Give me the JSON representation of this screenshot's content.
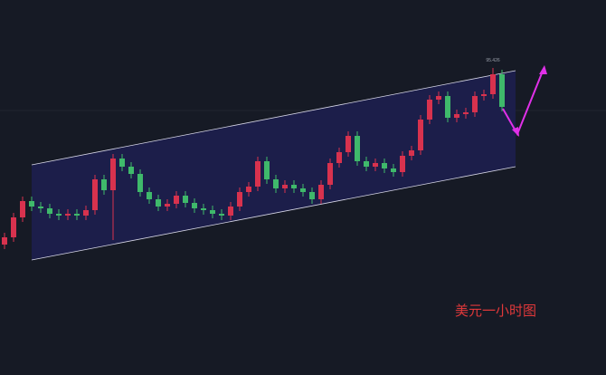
{
  "chart_data": {
    "type": "candlestick",
    "caption": "美元一小时图",
    "ylim": [
      92.714,
      96.026
    ],
    "up_color": "#d8324e",
    "down_color": "#3fb96b",
    "open": [
      93.866,
      93.93,
      94.106,
      94.25,
      94.202,
      94.186,
      94.138,
      94.122,
      94.138,
      94.122,
      94.17,
      94.442,
      94.346,
      94.626,
      94.554,
      94.49,
      94.33,
      94.266,
      94.202,
      94.226,
      94.298,
      94.234,
      94.186,
      94.17,
      94.138,
      94.122,
      94.202,
      94.33,
      94.378,
      94.602,
      94.442,
      94.362,
      94.394,
      94.362,
      94.33,
      94.266,
      94.394,
      94.586,
      94.682,
      94.826,
      94.602,
      94.554,
      94.586,
      94.538,
      94.506,
      94.65,
      94.698,
      94.97,
      95.146,
      95.178,
      94.986,
      95.018,
      95.034,
      95.178,
      95.194,
      95.37
    ],
    "high": [
      93.97,
      94.146,
      94.29,
      94.29,
      94.242,
      94.226,
      94.178,
      94.178,
      94.178,
      94.21,
      94.482,
      94.482,
      94.666,
      94.666,
      94.594,
      94.53,
      94.37,
      94.306,
      94.266,
      94.338,
      94.338,
      94.274,
      94.226,
      94.21,
      94.178,
      94.242,
      94.37,
      94.418,
      94.642,
      94.642,
      94.482,
      94.434,
      94.434,
      94.402,
      94.37,
      94.434,
      94.626,
      94.722,
      94.866,
      94.866,
      94.642,
      94.626,
      94.626,
      94.578,
      94.69,
      94.738,
      95.01,
      95.186,
      95.218,
      95.218,
      95.058,
      95.074,
      95.218,
      95.234,
      95.426,
      95.41
    ],
    "low": [
      93.826,
      93.89,
      94.066,
      94.162,
      94.146,
      94.098,
      94.082,
      94.082,
      94.082,
      94.082,
      94.13,
      94.306,
      93.906,
      94.514,
      94.45,
      94.29,
      94.226,
      94.162,
      94.162,
      94.186,
      94.194,
      94.146,
      94.13,
      94.098,
      94.082,
      94.082,
      94.162,
      94.29,
      94.338,
      94.402,
      94.322,
      94.322,
      94.322,
      94.29,
      94.226,
      94.226,
      94.354,
      94.546,
      94.642,
      94.562,
      94.514,
      94.514,
      94.498,
      94.466,
      94.466,
      94.61,
      94.658,
      94.93,
      95.106,
      94.946,
      94.946,
      94.978,
      94.994,
      95.138,
      95.154,
      95.042
    ],
    "close": [
      93.93,
      94.106,
      94.25,
      94.202,
      94.186,
      94.138,
      94.122,
      94.138,
      94.122,
      94.17,
      94.442,
      94.346,
      94.626,
      94.554,
      94.49,
      94.33,
      94.266,
      94.202,
      94.226,
      94.298,
      94.234,
      94.186,
      94.17,
      94.138,
      94.122,
      94.202,
      94.33,
      94.378,
      94.602,
      94.442,
      94.362,
      94.394,
      94.362,
      94.33,
      94.266,
      94.394,
      94.586,
      94.682,
      94.826,
      94.602,
      94.554,
      94.586,
      94.538,
      94.506,
      94.65,
      94.698,
      94.97,
      95.146,
      95.178,
      94.986,
      95.018,
      95.034,
      95.178,
      95.194,
      95.37,
      95.082
    ]
  }
}
